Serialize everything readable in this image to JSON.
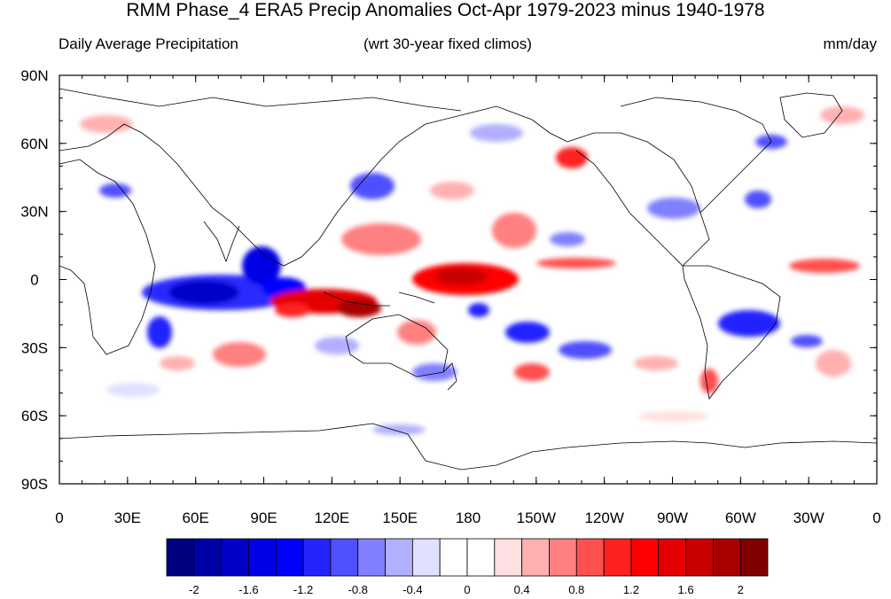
{
  "title": "RMM Phase_4 ERA5 Precip Anomalies Oct-Apr 1979-2023 minus 1940-1978",
  "left_subtitle": "Daily Average Precipitation",
  "center_subtitle": "(wrt 30-year fixed climos)",
  "units": "mm/day",
  "map": {
    "lat_labels": [
      "90N",
      "60N",
      "30N",
      "0",
      "30S",
      "60S",
      "90S"
    ],
    "lon_labels": [
      "0",
      "30E",
      "60E",
      "90E",
      "120E",
      "150E",
      "180",
      "150W",
      "120W",
      "90W",
      "60W",
      "30W",
      "0"
    ]
  },
  "colorbar": {
    "labels": [
      "-2",
      "-1.6",
      "-1.2",
      "-0.8",
      "-0.4",
      "0",
      "0.4",
      "0.8",
      "1.2",
      "1.6",
      "2"
    ],
    "colors": [
      "#000080",
      "#0000a8",
      "#0000c8",
      "#0000e4",
      "#0000ff",
      "#2424ff",
      "#5050ff",
      "#8080ff",
      "#b0b0ff",
      "#e0e0ff",
      "#ffffff",
      "#ffffff",
      "#ffe0e0",
      "#ffb0b0",
      "#ff8080",
      "#ff5050",
      "#ff2020",
      "#ff0000",
      "#e40000",
      "#c80000",
      "#a80000",
      "#800000"
    ]
  }
}
